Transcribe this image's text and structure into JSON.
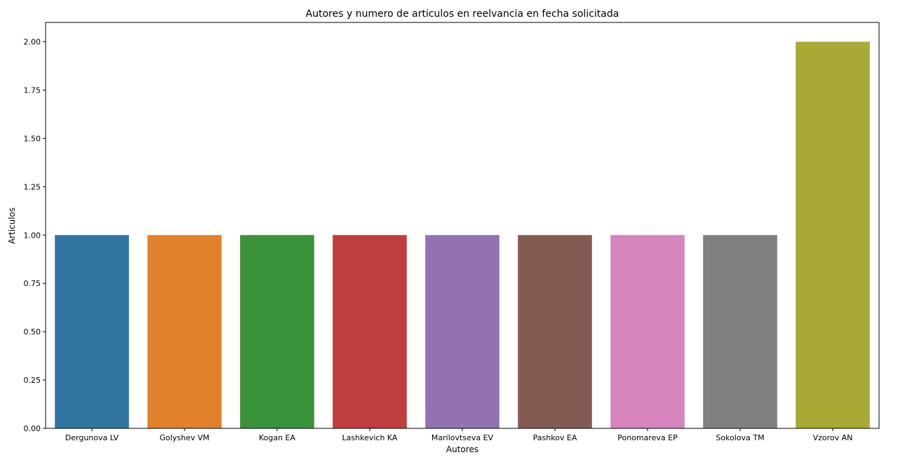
{
  "chart_data": {
    "type": "bar",
    "title": "Autores y numero de articulos en reelvancia en fecha solicitada",
    "xlabel": "Autores",
    "ylabel": "Articulos",
    "ylim": [
      0,
      2.1
    ],
    "yticks": [
      "0.00",
      "0.25",
      "0.50",
      "0.75",
      "1.00",
      "1.25",
      "1.50",
      "1.75",
      "2.00"
    ],
    "grid": false,
    "categories": [
      "Dergunova LV",
      "Golyshev VM",
      "Kogan EA",
      "Lashkevich KA",
      "Marilovtseva EV",
      "Pashkov EA",
      "Ponomareva EP",
      "Sokolova TM",
      "Vzorov AN"
    ],
    "values": [
      1,
      1,
      1,
      1,
      1,
      1,
      1,
      1,
      2
    ],
    "colors": [
      "#3274a1",
      "#e1812c",
      "#3a923a",
      "#c03d3e",
      "#9372b2",
      "#845b53",
      "#d684bd",
      "#7f7f7f",
      "#a9aa35"
    ]
  }
}
